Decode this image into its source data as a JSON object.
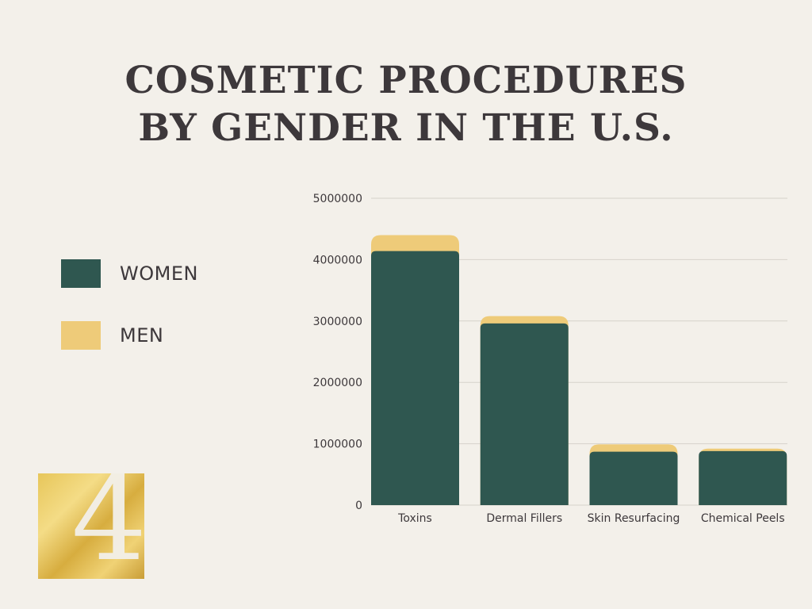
{
  "title": {
    "line1": "COSMETIC PROCEDURES",
    "line2": "BY GENDER IN THE U.S."
  },
  "legend": [
    {
      "label": "WOMEN",
      "color": "#2f5750"
    },
    {
      "label": "MEN",
      "color": "#eecb79"
    }
  ],
  "logo": {
    "glyph": "4",
    "color": "#e2bf57"
  },
  "chart_data": {
    "type": "bar",
    "stacked": true,
    "categories": [
      "Toxins",
      "Dermal Fillers",
      "Skin Resurfacing",
      "Chemical Peels"
    ],
    "series": [
      {
        "name": "WOMEN",
        "color": "#2f5750",
        "values": [
          4140000,
          2960000,
          870000,
          880000
        ]
      },
      {
        "name": "MEN",
        "color": "#eecb79",
        "values": [
          260000,
          120000,
          120000,
          40000
        ]
      }
    ],
    "ylim": [
      0,
      5000000
    ],
    "yticks": [
      0,
      1000000,
      2000000,
      3000000,
      4000000,
      5000000
    ],
    "grid": true,
    "legend_position": "left"
  }
}
